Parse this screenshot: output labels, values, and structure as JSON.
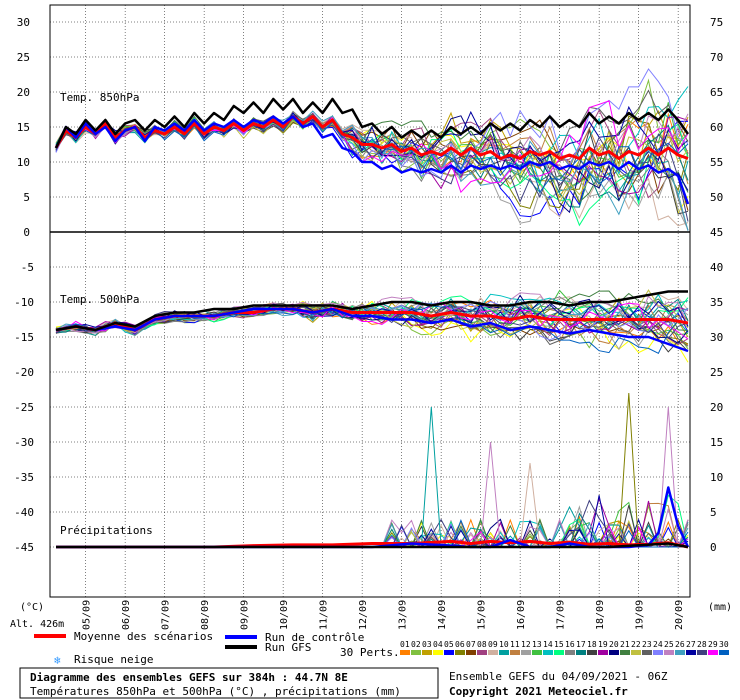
{
  "chart_data": {
    "type": "line",
    "title": "Diagramme des ensembles GEFS sur 384h : 44.7N 8E",
    "subtitle": "Températures 850hPa et 500hPa (°C) , précipitations (mm)",
    "run_info": "Ensemble GEFS du 04/09/2021 - 06Z",
    "copyright": "Copyright 2021 Meteociel.fr",
    "altitude": "Alt. 426m",
    "left_unit": "(°C)",
    "right_unit": "(mm)",
    "panel_labels": {
      "t850": "Temp. 850hPa",
      "t500": "Temp. 500hPa",
      "precip": "Précipitations"
    },
    "left_ticks_top": [
      "30",
      "25",
      "20",
      "15",
      "10",
      "5",
      "0"
    ],
    "left_ticks_bottom": [
      "-5",
      "-10",
      "-15",
      "-20",
      "-25",
      "-30",
      "-35",
      "-40",
      "-45"
    ],
    "right_ticks_top": [
      "75",
      "70",
      "65",
      "60",
      "55",
      "50"
    ],
    "right_ticks_bottom": [
      "45",
      "40",
      "35",
      "30",
      "25",
      "20",
      "15",
      "10",
      "5",
      "0"
    ],
    "x_labels": [
      "05/09",
      "06/09",
      "07/09",
      "08/09",
      "09/09",
      "10/09",
      "11/09",
      "12/09",
      "13/09",
      "14/09",
      "15/09",
      "16/09",
      "17/09",
      "18/09",
      "19/09",
      "20/09"
    ],
    "legend": {
      "mean": "Moyenne des scénarios",
      "control": "Run de contrôle",
      "gfs": "Run GFS",
      "snow": "Risque neige",
      "perts": "30 Perts."
    },
    "pert_labels": [
      "01",
      "02",
      "03",
      "04",
      "05",
      "06",
      "07",
      "08",
      "09",
      "10",
      "11",
      "12",
      "13",
      "14",
      "15",
      "16",
      "17",
      "18",
      "19",
      "20",
      "21",
      "22",
      "23",
      "24",
      "25",
      "26",
      "27",
      "28",
      "29",
      "30"
    ],
    "pert_colors": [
      "#ff8000",
      "#80c040",
      "#c0a000",
      "#ffff00",
      "#0000ff",
      "#808000",
      "#804000",
      "#a04080",
      "#d0b0a0",
      "#00a0a0",
      "#c08040",
      "#a0a0a0",
      "#40c040",
      "#00c0c0",
      "#00ff80",
      "#808080",
      "#008080",
      "#404040",
      "#a000a0",
      "#000080",
      "#408040",
      "#c0c040",
      "#606060",
      "#8080ff",
      "#c080c0",
      "#40a0c0",
      "#0000a0",
      "#404080",
      "#ff00ff",
      "#0060c0"
    ],
    "colors": {
      "mean": "#ff0000",
      "control": "#0000ff",
      "gfs": "#000000",
      "grid": "#000000",
      "snow": "#3399ff"
    },
    "series": [
      {
        "name": "Moyenne des scénarios",
        "panel": "t850",
        "x": [
          0,
          6,
          12,
          18,
          24,
          30,
          36,
          42,
          48,
          54,
          60,
          66,
          72,
          78,
          84,
          90,
          96,
          102,
          108,
          114,
          120,
          126,
          132,
          138,
          144,
          150,
          156,
          162,
          168,
          174,
          180,
          186,
          192,
          198,
          204,
          210,
          216,
          222,
          228,
          234,
          240,
          246,
          252,
          258,
          264,
          270,
          276,
          282,
          288,
          294,
          300,
          306,
          312,
          318,
          324,
          330,
          336,
          342,
          348,
          354,
          360,
          366,
          372,
          378,
          384
        ],
        "y": [
          12,
          14.5,
          13.5,
          15,
          14,
          15.5,
          13.5,
          14.5,
          15,
          13.5,
          14.5,
          14,
          15,
          14,
          15.5,
          14,
          15,
          14.5,
          15.5,
          14.5,
          15.5,
          15,
          16,
          15,
          16.5,
          15.5,
          16.5,
          15,
          16,
          14,
          13.5,
          12.5,
          12.5,
          12,
          12.5,
          11.5,
          12,
          11,
          11.5,
          11,
          12,
          11,
          12,
          11,
          11.5,
          10.5,
          11,
          10.5,
          11.5,
          11,
          11.5,
          10.5,
          11,
          10.5,
          12,
          11,
          11.5,
          10.5,
          11.5,
          11,
          12,
          11,
          12,
          11,
          10.5
        ]
      },
      {
        "name": "Run de contrôle",
        "panel": "t850",
        "x": [
          0,
          6,
          12,
          18,
          24,
          30,
          36,
          42,
          48,
          54,
          60,
          66,
          72,
          78,
          84,
          90,
          96,
          102,
          108,
          114,
          120,
          126,
          132,
          138,
          144,
          150,
          156,
          162,
          168,
          174,
          180,
          186,
          192,
          198,
          204,
          210,
          216,
          222,
          228,
          234,
          240,
          246,
          252,
          258,
          264,
          270,
          276,
          282,
          288,
          294,
          300,
          306,
          312,
          318,
          324,
          330,
          336,
          342,
          348,
          354,
          360,
          366,
          372,
          378,
          384
        ],
        "y": [
          12,
          15,
          13.5,
          15.5,
          14,
          15,
          13,
          14.5,
          15,
          13,
          15,
          14.5,
          15.5,
          14.5,
          16,
          14.5,
          15.5,
          15,
          16,
          15,
          16,
          15.5,
          16.5,
          15.5,
          16.5,
          15,
          15.5,
          13.5,
          14,
          12,
          11.5,
          10,
          10,
          9,
          9.5,
          8.5,
          9,
          8.5,
          9,
          8.5,
          9.5,
          8.5,
          9.5,
          9,
          9.5,
          9,
          9.5,
          9,
          10,
          9.5,
          10,
          9,
          9.5,
          9,
          10,
          9.5,
          10,
          9,
          10,
          9,
          9.5,
          8.5,
          9,
          8,
          4
        ]
      },
      {
        "name": "Run GFS",
        "panel": "t850",
        "x": [
          0,
          6,
          12,
          18,
          24,
          30,
          36,
          42,
          48,
          54,
          60,
          66,
          72,
          78,
          84,
          90,
          96,
          102,
          108,
          114,
          120,
          126,
          132,
          138,
          144,
          150,
          156,
          162,
          168,
          174,
          180,
          186,
          192,
          198,
          204,
          210,
          216,
          222,
          228,
          234,
          240,
          246,
          252,
          258,
          264,
          270,
          276,
          282,
          288,
          294,
          300,
          306,
          312,
          318,
          324,
          330,
          336,
          342,
          348,
          354,
          360,
          366,
          372,
          378,
          384
        ],
        "y": [
          12,
          15,
          14,
          16,
          14.5,
          16,
          14,
          15.5,
          16,
          14.5,
          16,
          15,
          16.5,
          15,
          17,
          15.5,
          17,
          16,
          18,
          17,
          18.5,
          17,
          19,
          17.5,
          19,
          17,
          18.5,
          17,
          19,
          17,
          17.5,
          15,
          15.5,
          14,
          15,
          13.5,
          14.5,
          13.5,
          14.5,
          13.5,
          15,
          14,
          15,
          14,
          15.5,
          14.5,
          15.5,
          14.5,
          16,
          15,
          16.5,
          15,
          16,
          15,
          17,
          15.5,
          16.5,
          15.5,
          17,
          16,
          17,
          16,
          17.5,
          16,
          14
        ]
      },
      {
        "name": "Moyenne des scénarios",
        "panel": "t500",
        "x": [
          0,
          12,
          24,
          36,
          48,
          60,
          72,
          84,
          96,
          108,
          120,
          132,
          144,
          156,
          168,
          180,
          192,
          204,
          216,
          228,
          240,
          252,
          264,
          276,
          288,
          300,
          312,
          324,
          336,
          348,
          360,
          372,
          384
        ],
        "y": [
          -14,
          -13.5,
          -14,
          -13,
          -14,
          -12.5,
          -12,
          -12,
          -12,
          -11.5,
          -11.5,
          -11,
          -11,
          -11.5,
          -11,
          -11.5,
          -11.5,
          -11.5,
          -11.5,
          -12,
          -11.5,
          -12,
          -12,
          -12.5,
          -12,
          -12.5,
          -12.5,
          -12.5,
          -12.5,
          -12.5,
          -12.5,
          -12.5,
          -13
        ]
      },
      {
        "name": "Run de contrôle",
        "panel": "t500",
        "x": [
          0,
          12,
          24,
          36,
          48,
          60,
          72,
          84,
          96,
          108,
          120,
          132,
          144,
          156,
          168,
          180,
          192,
          204,
          216,
          228,
          240,
          252,
          264,
          276,
          288,
          300,
          312,
          324,
          336,
          348,
          360,
          372,
          384
        ],
        "y": [
          -14,
          -13.5,
          -14,
          -13.5,
          -14,
          -12.5,
          -12,
          -12,
          -12,
          -11.5,
          -11,
          -11,
          -11,
          -11.5,
          -11,
          -12,
          -12,
          -12.5,
          -12.5,
          -13,
          -12.5,
          -13.5,
          -13,
          -14,
          -13.5,
          -14,
          -14.5,
          -14,
          -14.5,
          -15,
          -15,
          -16,
          -17
        ]
      },
      {
        "name": "Run GFS",
        "panel": "t500",
        "x": [
          0,
          12,
          24,
          36,
          48,
          60,
          72,
          84,
          96,
          108,
          120,
          132,
          144,
          156,
          168,
          180,
          192,
          204,
          216,
          228,
          240,
          252,
          264,
          276,
          288,
          300,
          312,
          324,
          336,
          348,
          360,
          372,
          384
        ],
        "y": [
          -14,
          -13.5,
          -14,
          -13,
          -13.5,
          -12,
          -11.5,
          -11.5,
          -11,
          -11,
          -10.5,
          -10.5,
          -10.5,
          -10.5,
          -10.5,
          -11,
          -10.5,
          -10,
          -10,
          -10.5,
          -10,
          -10,
          -10.5,
          -10.5,
          -10,
          -10,
          -10.5,
          -10,
          -10,
          -9.5,
          -9,
          -8.5,
          -8.5
        ]
      },
      {
        "name": "Moyenne des scénarios",
        "panel": "precip",
        "x": [
          0,
          24,
          48,
          72,
          96,
          120,
          144,
          168,
          192,
          216,
          240,
          252,
          264,
          276,
          288,
          300,
          312,
          324,
          336,
          348,
          360,
          372,
          384
        ],
        "y": [
          0,
          0,
          0,
          0,
          0,
          0.2,
          0.3,
          0.3,
          0.5,
          0.5,
          0.8,
          0.5,
          0.8,
          0.6,
          0.8,
          0.5,
          0.7,
          0.4,
          0.5,
          0.3,
          0.4,
          0.6,
          0
        ]
      },
      {
        "name": "Run de contrôle",
        "panel": "precip",
        "x": [
          0,
          24,
          48,
          72,
          96,
          120,
          144,
          168,
          192,
          216,
          240,
          252,
          264,
          276,
          288,
          300,
          312,
          324,
          336,
          348,
          360,
          366,
          372,
          378,
          384
        ],
        "y": [
          0,
          0,
          0,
          0,
          0,
          0,
          0,
          0,
          0,
          0.5,
          0.2,
          0,
          0,
          1,
          0,
          0,
          0.5,
          0,
          0,
          0,
          0.3,
          2,
          8.5,
          3,
          0
        ]
      },
      {
        "name": "Run GFS",
        "panel": "precip",
        "x": [
          0,
          48,
          96,
          144,
          192,
          240,
          288,
          336,
          372,
          384
        ],
        "y": [
          0,
          0,
          0,
          0,
          0,
          0,
          0,
          0,
          0.5,
          0
        ]
      }
    ]
  }
}
